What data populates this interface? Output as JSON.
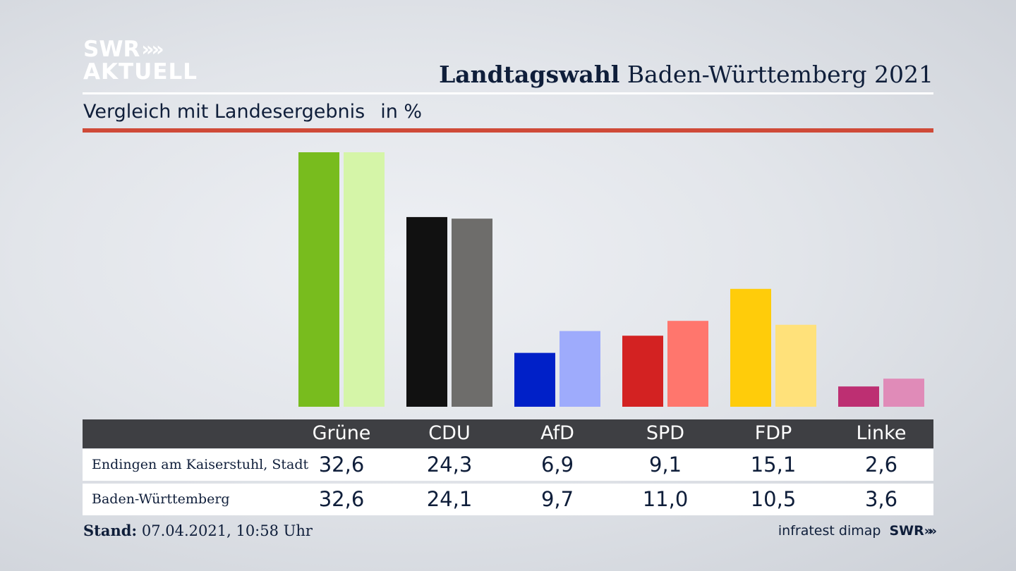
{
  "logo": {
    "line1": "SWR",
    "line2": "AKTUELL",
    "chevrons": "»"
  },
  "header": {
    "title_bold": "Landtagswahl",
    "title_rest": "Baden-Württemberg 2021"
  },
  "subtitle": {
    "text": "Vergleich mit Landesergebnis",
    "unit": "in %"
  },
  "footer": {
    "stand_label": "Stand:",
    "stand_value": "07.04.2021, 10:58 Uhr",
    "source": "infratest dimap",
    "source_logo": "SWR",
    "source_chevrons": "»"
  },
  "colors": {
    "accent_red": "#cf4a38",
    "header_band": "#3e3f43"
  },
  "chart_data": {
    "type": "bar",
    "unit": "in %",
    "categories": [
      "Grüne",
      "CDU",
      "AfD",
      "SPD",
      "FDP",
      "Linke"
    ],
    "series": [
      {
        "name": "Endingen am Kaiserstuhl, Stadt",
        "values": [
          32.6,
          24.3,
          6.9,
          9.1,
          15.1,
          2.6
        ],
        "labels": [
          "32,6",
          "24,3",
          "6,9",
          "9,1",
          "15,1",
          "2,6"
        ],
        "colors": [
          "#78bc1e",
          "#111111",
          "#0020c8",
          "#d32222",
          "#ffcc0a",
          "#bd2f72"
        ]
      },
      {
        "name": "Baden-Württemberg",
        "values": [
          32.6,
          24.1,
          9.7,
          11.0,
          10.5,
          3.6
        ],
        "labels": [
          "32,6",
          "24,1",
          "9,7",
          "11,0",
          "10,5",
          "3,6"
        ],
        "colors": [
          "#d5f5a8",
          "#6e6d6b",
          "#9eabfc",
          "#ff766d",
          "#ffe17a",
          "#e08bb8"
        ]
      }
    ],
    "ylim": [
      0,
      32.6
    ],
    "grid": false,
    "legend": "table-below"
  }
}
